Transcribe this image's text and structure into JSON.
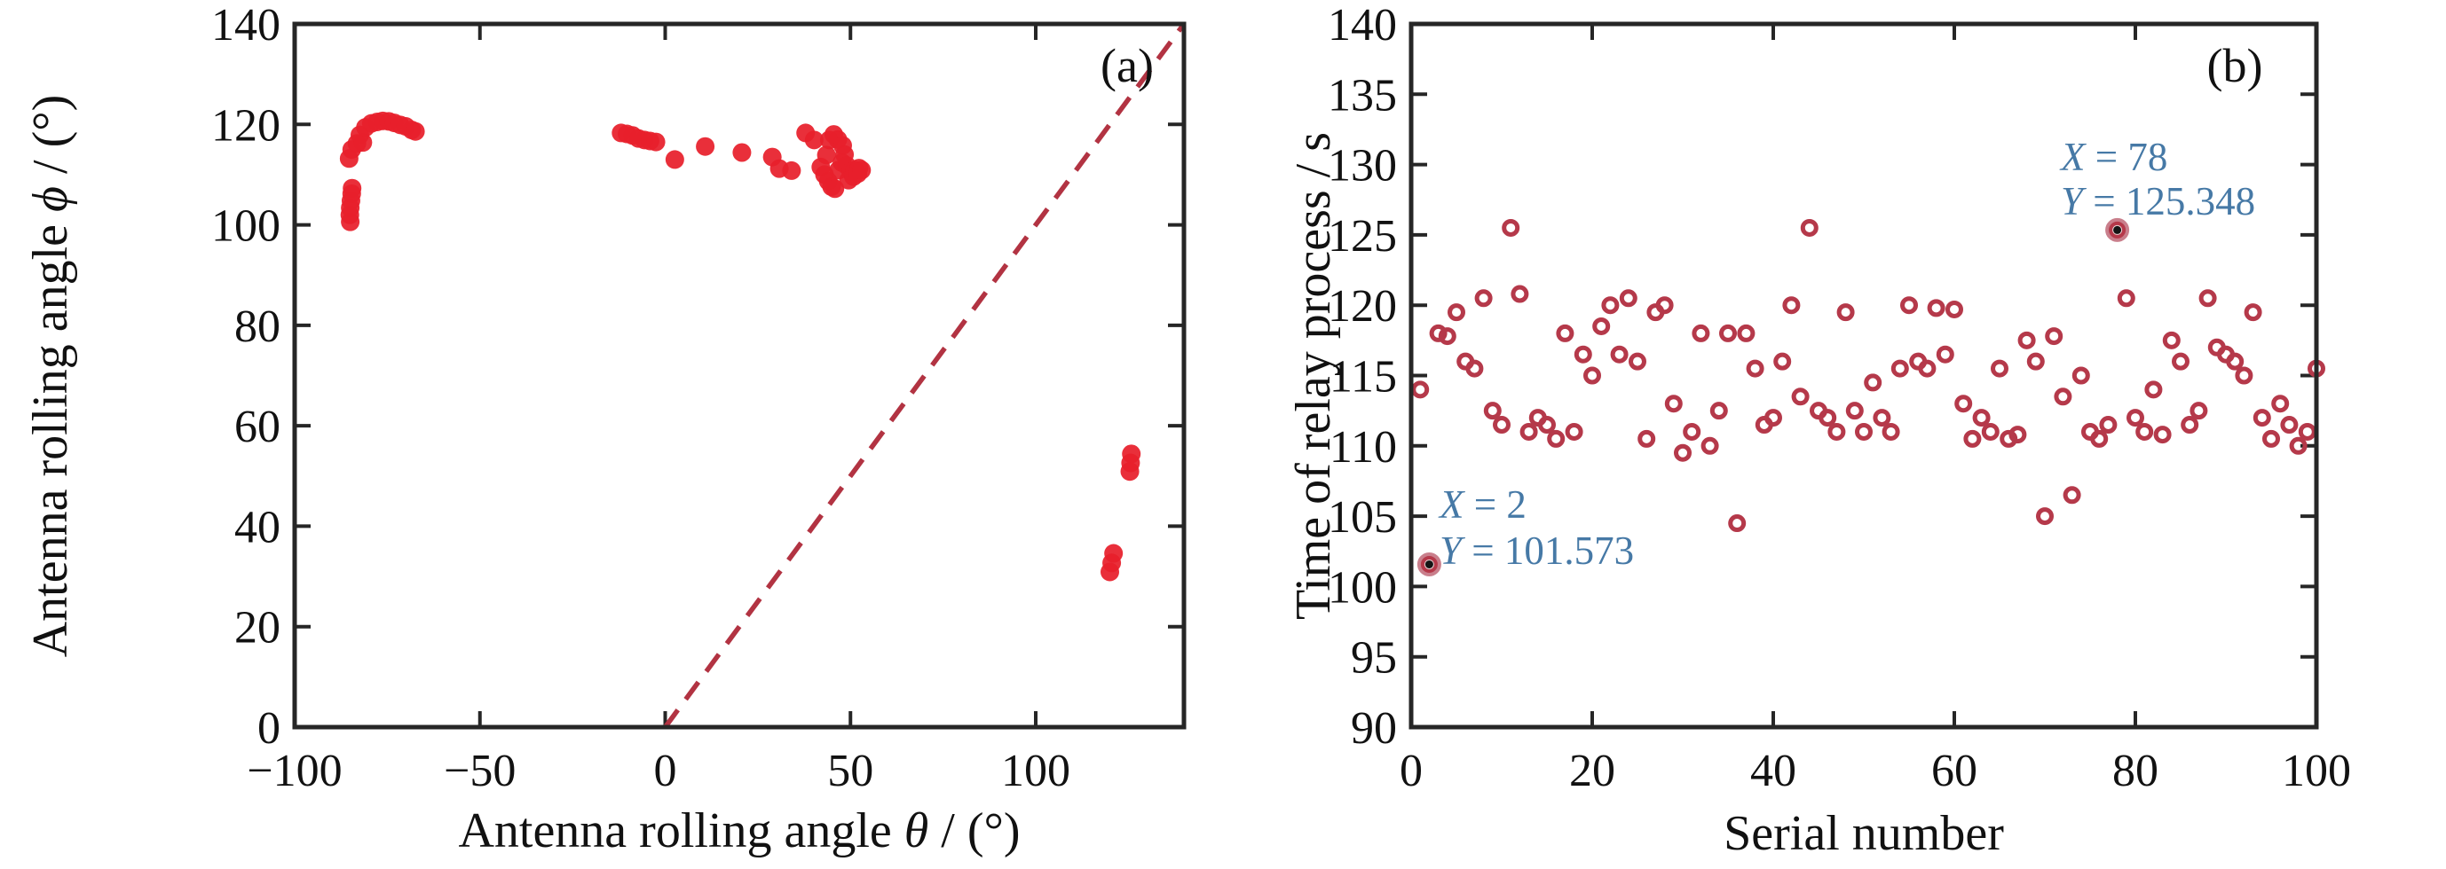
{
  "figure": {
    "background": "#ffffff",
    "corner_label_a": "(a)",
    "corner_label_b": "(b)"
  },
  "colors": {
    "marker_fill_a": "#e71f2b",
    "identity_line": "#b23342",
    "marker_ring_b": "#b5394a",
    "annotation_blue": "#4679a6",
    "axis": "#262626"
  },
  "chart_data": [
    {
      "id": "a",
      "type": "scatter",
      "corner_label": "(a)",
      "xlabel_parts": {
        "prefix": "Antenna rolling angle ",
        "symbol": "θ",
        "suffix": " / (°)"
      },
      "ylabel_parts": {
        "prefix": "Antenna rolling angle ",
        "symbol": "ϕ",
        "suffix": " / (°)"
      },
      "xlim": [
        -100,
        140
      ],
      "ylim": [
        0,
        140
      ],
      "xticks": [
        {
          "v": -100,
          "t": "−100"
        },
        {
          "v": -50,
          "t": "−50"
        },
        {
          "v": 0,
          "t": "0"
        },
        {
          "v": 50,
          "t": "50"
        },
        {
          "v": 100,
          "t": "100"
        }
      ],
      "yticks": [
        {
          "v": 0,
          "t": "0"
        },
        {
          "v": 20,
          "t": "20"
        },
        {
          "v": 40,
          "t": "40"
        },
        {
          "v": 60,
          "t": "60"
        },
        {
          "v": 80,
          "t": "80"
        },
        {
          "v": 100,
          "t": "100"
        },
        {
          "v": 120,
          "t": "120"
        },
        {
          "v": 140,
          "t": "140"
        }
      ],
      "grid": false,
      "marker": {
        "style": "filled-dot",
        "color": "#e71f2b",
        "radius": 10.5
      },
      "identity_line": {
        "meaning": "y = x",
        "from": [
          0,
          0
        ],
        "to": [
          140,
          140
        ],
        "color": "#b23342",
        "width": 5.5,
        "dash": [
          24,
          15
        ]
      },
      "points": [
        [
          -85.3,
          113.2
        ],
        [
          -84.6,
          115.0
        ],
        [
          -83.2,
          116.2
        ],
        [
          -82.4,
          117.9
        ],
        [
          -81.6,
          116.4
        ],
        [
          -80.9,
          119.4
        ],
        [
          -79.3,
          120.2
        ],
        [
          -77.7,
          120.5
        ],
        [
          -76.2,
          120.7
        ],
        [
          -74.6,
          120.6
        ],
        [
          -73.1,
          120.3
        ],
        [
          -71.5,
          119.9
        ],
        [
          -70.0,
          119.6
        ],
        [
          -68.4,
          118.9
        ],
        [
          -67.4,
          118.6
        ],
        [
          -85.0,
          100.6
        ],
        [
          -85.1,
          102.0
        ],
        [
          -85.0,
          103.4
        ],
        [
          -84.8,
          104.8
        ],
        [
          -84.6,
          106.2
        ],
        [
          -84.5,
          107.3
        ],
        [
          -11.9,
          118.3
        ],
        [
          -10.3,
          118.1
        ],
        [
          -8.8,
          117.8
        ],
        [
          -7.2,
          117.2
        ],
        [
          -5.6,
          116.9
        ],
        [
          -4.1,
          116.7
        ],
        [
          -2.5,
          116.5
        ],
        [
          2.6,
          113.0
        ],
        [
          10.8,
          115.6
        ],
        [
          20.7,
          114.4
        ],
        [
          28.9,
          113.5
        ],
        [
          30.8,
          111.2
        ],
        [
          34.1,
          110.8
        ],
        [
          37.9,
          118.3
        ],
        [
          40.2,
          116.9
        ],
        [
          43.5,
          113.9
        ],
        [
          42.0,
          111.5
        ],
        [
          43.0,
          110.0
        ],
        [
          44.0,
          108.7
        ],
        [
          44.9,
          107.6
        ],
        [
          45.8,
          107.2
        ],
        [
          46.8,
          110.9
        ],
        [
          47.7,
          112.4
        ],
        [
          48.4,
          114.0
        ],
        [
          44.3,
          116.9
        ],
        [
          45.5,
          118.0
        ],
        [
          46.6,
          117.0
        ],
        [
          47.9,
          115.8
        ],
        [
          49.0,
          111.8
        ],
        [
          50.1,
          110.6
        ],
        [
          51.2,
          110.9
        ],
        [
          52.3,
          111.3
        ],
        [
          49.5,
          108.9
        ],
        [
          50.8,
          109.6
        ],
        [
          52.0,
          110.2
        ],
        [
          53.0,
          110.9
        ],
        [
          125.4,
          50.9
        ],
        [
          125.6,
          52.6
        ],
        [
          125.8,
          54.4
        ],
        [
          120.0,
          30.9
        ],
        [
          120.5,
          32.7
        ],
        [
          121.0,
          34.6
        ]
      ]
    },
    {
      "id": "b",
      "type": "scatter",
      "corner_label": "(b)",
      "xlabel": "Serial number",
      "ylabel": "Time of relay process / s",
      "xlim": [
        0,
        100
      ],
      "ylim": [
        90,
        140
      ],
      "xticks": [
        {
          "v": 0,
          "t": "0"
        },
        {
          "v": 20,
          "t": "20"
        },
        {
          "v": 40,
          "t": "40"
        },
        {
          "v": 60,
          "t": "60"
        },
        {
          "v": 80,
          "t": "80"
        },
        {
          "v": 100,
          "t": "100"
        }
      ],
      "yticks": [
        {
          "v": 90,
          "t": "90"
        },
        {
          "v": 95,
          "t": "95"
        },
        {
          "v": 100,
          "t": "100"
        },
        {
          "v": 105,
          "t": "105"
        },
        {
          "v": 110,
          "t": "110"
        },
        {
          "v": 115,
          "t": "115"
        },
        {
          "v": 120,
          "t": "120"
        },
        {
          "v": 125,
          "t": "125"
        },
        {
          "v": 130,
          "t": "130"
        },
        {
          "v": 135,
          "t": "135"
        },
        {
          "v": 140,
          "t": "140"
        }
      ],
      "grid": false,
      "marker": {
        "style": "open-circle",
        "color": "#b5394a",
        "radius": 7.5,
        "stroke_width": 5
      },
      "points": [
        [
          1,
          114.0
        ],
        [
          2,
          101.573
        ],
        [
          3,
          118.0
        ],
        [
          4,
          117.8
        ],
        [
          5,
          119.5
        ],
        [
          6,
          116.0
        ],
        [
          7,
          115.5
        ],
        [
          8,
          120.5
        ],
        [
          9,
          112.5
        ],
        [
          10,
          111.5
        ],
        [
          11,
          125.5
        ],
        [
          12,
          120.8
        ],
        [
          13,
          111.0
        ],
        [
          14,
          112.0
        ],
        [
          15,
          111.5
        ],
        [
          16,
          110.5
        ],
        [
          17,
          118.0
        ],
        [
          18,
          111.0
        ],
        [
          19,
          116.5
        ],
        [
          20,
          115.0
        ],
        [
          21,
          118.5
        ],
        [
          22,
          120.0
        ],
        [
          23,
          116.5
        ],
        [
          24,
          120.5
        ],
        [
          25,
          116.0
        ],
        [
          26,
          110.5
        ],
        [
          27,
          119.5
        ],
        [
          28,
          120.0
        ],
        [
          29,
          113.0
        ],
        [
          30,
          109.5
        ],
        [
          31,
          111.0
        ],
        [
          32,
          118.0
        ],
        [
          33,
          110.0
        ],
        [
          34,
          112.5
        ],
        [
          35,
          118.0
        ],
        [
          36,
          104.5
        ],
        [
          37,
          118.0
        ],
        [
          38,
          115.5
        ],
        [
          39,
          111.5
        ],
        [
          40,
          112.0
        ],
        [
          41,
          116.0
        ],
        [
          42,
          120.0
        ],
        [
          43,
          113.5
        ],
        [
          44,
          125.5
        ],
        [
          45,
          112.5
        ],
        [
          46,
          112.0
        ],
        [
          47,
          111.0
        ],
        [
          48,
          119.5
        ],
        [
          49,
          112.5
        ],
        [
          50,
          111.0
        ],
        [
          51,
          114.5
        ],
        [
          52,
          112.0
        ],
        [
          53,
          111.0
        ],
        [
          54,
          115.5
        ],
        [
          55,
          120.0
        ],
        [
          56,
          116.0
        ],
        [
          57,
          115.5
        ],
        [
          58,
          119.8
        ],
        [
          59,
          116.5
        ],
        [
          60,
          119.7
        ],
        [
          61,
          113.0
        ],
        [
          62,
          110.5
        ],
        [
          63,
          112.0
        ],
        [
          64,
          111.0
        ],
        [
          65,
          115.5
        ],
        [
          66,
          110.5
        ],
        [
          67,
          110.8
        ],
        [
          68,
          117.5
        ],
        [
          69,
          116.0
        ],
        [
          70,
          105.0
        ],
        [
          71,
          117.8
        ],
        [
          72,
          113.5
        ],
        [
          73,
          106.5
        ],
        [
          74,
          115.0
        ],
        [
          75,
          111.0
        ],
        [
          76,
          110.5
        ],
        [
          77,
          111.5
        ],
        [
          78,
          125.348
        ],
        [
          79,
          120.5
        ],
        [
          80,
          112.0
        ],
        [
          81,
          111.0
        ],
        [
          82,
          114.0
        ],
        [
          83,
          110.8
        ],
        [
          84,
          117.5
        ],
        [
          85,
          116.0
        ],
        [
          86,
          111.5
        ],
        [
          87,
          112.5
        ],
        [
          88,
          120.5
        ],
        [
          89,
          117.0
        ],
        [
          90,
          116.5
        ],
        [
          91,
          116.0
        ],
        [
          92,
          115.0
        ],
        [
          93,
          119.5
        ],
        [
          94,
          112.0
        ],
        [
          95,
          110.5
        ],
        [
          96,
          113.0
        ],
        [
          97,
          111.5
        ],
        [
          98,
          110.0
        ],
        [
          99,
          111.0
        ],
        [
          100,
          115.5
        ]
      ],
      "highlighted_points": [
        {
          "x": 2,
          "y": 101.573
        },
        {
          "x": 78,
          "y": 125.348
        }
      ],
      "annotations": [
        {
          "lines": [
            [
              "X",
              " = 2"
            ],
            [
              "Y",
              " = 101.573"
            ]
          ]
        },
        {
          "lines": [
            [
              "X",
              " = 78"
            ],
            [
              "Y",
              " = 125.348"
            ]
          ]
        }
      ]
    }
  ]
}
